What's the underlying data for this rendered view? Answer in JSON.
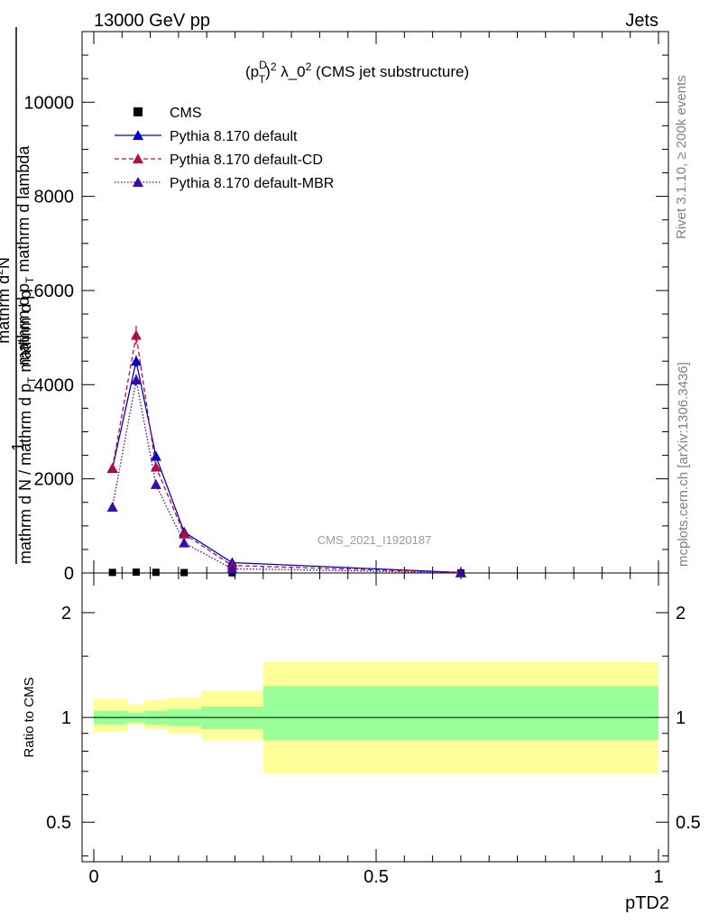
{
  "header": {
    "left": "13000 GeV pp",
    "right": "Jets"
  },
  "side_labels": {
    "rivet": "Rivet 3.1.10, ≥ 200k events",
    "mcplots": "mcplots.cern.ch [arXiv:1306.3436]"
  },
  "chart_data": [
    {
      "type": "line",
      "title_parts": {
        "p": "(p",
        "sub": "T",
        "sup": "D",
        "sq": "2",
        "rest": " λ_0",
        "sq2": "2",
        "tail": " (CMS jet substructure)"
      },
      "ylabel_parts": {
        "one": "1",
        "den": "mathrm d N / mathrm d p",
        "den_sub": "T",
        "den_tail": " mathrm d p",
        "num": "mathrm d",
        "num_sup": "2",
        "num_n": "N",
        "num2": "mathrm d p",
        "num2_sub": "T",
        "num2_tail": " mathrm d lambda"
      },
      "watermark": "CMS_2021_I1920187",
      "xlim": [
        0,
        1
      ],
      "ylim": [
        0,
        11500
      ],
      "yticks": [
        0,
        2000,
        4000,
        6000,
        8000,
        10000
      ],
      "ytick_labels": [
        "0",
        "2000",
        "4000",
        "6000",
        "8000",
        "10000"
      ],
      "series": [
        {
          "name": "CMS",
          "color": "#000000",
          "style": "data",
          "x": [
            0.033,
            0.075,
            0.11,
            0.16,
            0.245,
            0.65
          ],
          "values": [
            12,
            18,
            14,
            9,
            4,
            1
          ]
        },
        {
          "name": "Pythia 8.170 default",
          "color": "#0000cc",
          "style": "solid",
          "x": [
            0.033,
            0.075,
            0.11,
            0.16,
            0.245,
            0.65
          ],
          "values": [
            2220,
            4500,
            2480,
            870,
            220,
            10
          ],
          "errors": [
            70,
            120,
            80,
            35,
            15,
            5
          ]
        },
        {
          "name": "Pythia 8.170 default-CD",
          "color": "#b0103a",
          "style": "dashed",
          "x": [
            0.033,
            0.075,
            0.11,
            0.16,
            0.245,
            0.65
          ],
          "values": [
            2230,
            5050,
            2250,
            830,
            160,
            8
          ],
          "errors": [
            70,
            200,
            80,
            35,
            15,
            5
          ]
        },
        {
          "name": "Pythia 8.170 default-MBR",
          "color": "#3a0aa8",
          "style": "dotted",
          "x": [
            0.033,
            0.075,
            0.11,
            0.16,
            0.245,
            0.65
          ],
          "values": [
            1400,
            4100,
            1880,
            640,
            90,
            5
          ],
          "errors": [
            50,
            120,
            70,
            30,
            10,
            5
          ]
        }
      ]
    },
    {
      "type": "area",
      "ylabel": "Ratio to CMS",
      "xlabel": "pTD2",
      "xlim": [
        0,
        1
      ],
      "xticks": [
        0,
        0.5,
        1
      ],
      "xtick_labels": [
        "0",
        "0.5",
        "1"
      ],
      "ylim": [
        0.385,
        2.6
      ],
      "yticks": [
        0.5,
        1,
        2
      ],
      "ytick_labels": [
        "0.5",
        "1",
        "2"
      ],
      "reference_line": 1,
      "bands": {
        "bin_edges": [
          0,
          0.06,
          0.09,
          0.13,
          0.19,
          0.3,
          1.0
        ],
        "inner_color": "#99ff99",
        "outer_color": "#ffff99",
        "inner_low": [
          0.955,
          0.968,
          0.955,
          0.945,
          0.925,
          0.86
        ],
        "inner_high": [
          1.045,
          1.032,
          1.045,
          1.055,
          1.075,
          1.23
        ],
        "outer_low": [
          0.91,
          0.95,
          0.925,
          0.9,
          0.86,
          0.69
        ],
        "outer_high": [
          1.13,
          1.09,
          1.12,
          1.14,
          1.19,
          1.44
        ]
      }
    }
  ]
}
